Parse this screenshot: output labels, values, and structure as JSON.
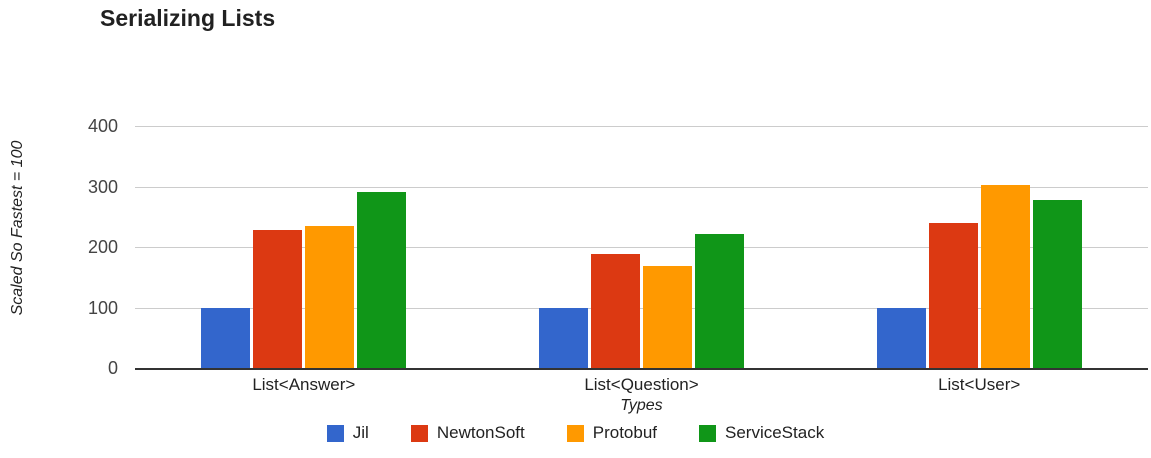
{
  "chart_data": {
    "type": "bar",
    "title": "Serializing Lists",
    "xlabel": "Types",
    "ylabel": "Scaled So Fastest = 100",
    "ylim": [
      0,
      400
    ],
    "yticks": [
      0,
      100,
      200,
      300,
      400
    ],
    "grid": true,
    "legend_position": "bottom",
    "categories": [
      "List<Answer>",
      "List<Question>",
      "List<User>"
    ],
    "series": [
      {
        "name": "Jil",
        "color": "#3366CC",
        "values": [
          100,
          100,
          100
        ]
      },
      {
        "name": "NewtonSoft",
        "color": "#DC3912",
        "values": [
          228,
          189,
          239
        ]
      },
      {
        "name": "Protobuf",
        "color": "#FF9900",
        "values": [
          235,
          169,
          303
        ]
      },
      {
        "name": "ServiceStack",
        "color": "#109618",
        "values": [
          291,
          221,
          277
        ]
      }
    ],
    "colors": {
      "gridline": "#cccccc",
      "baseline": "#333333",
      "tick_text": "#444444",
      "label_text": "#222222",
      "title_text": "#212121"
    }
  }
}
